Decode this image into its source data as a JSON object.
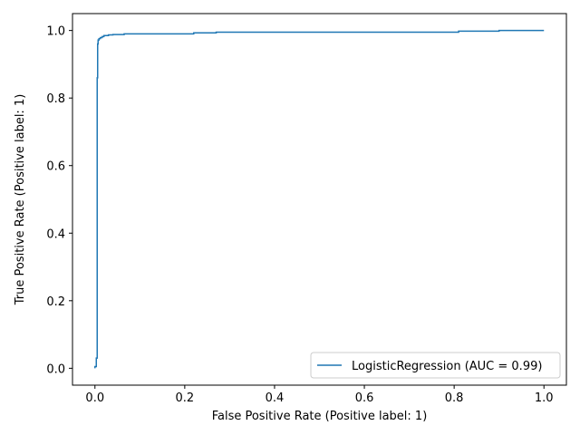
{
  "chart_data": {
    "type": "line",
    "title": "",
    "xlabel": "False Positive Rate (Positive label: 1)",
    "ylabel": "True Positive Rate (Positive label: 1)",
    "xlim": [
      -0.05,
      1.05
    ],
    "ylim": [
      -0.05,
      1.05
    ],
    "xticks": [
      0.0,
      0.2,
      0.4,
      0.6,
      0.8,
      1.0
    ],
    "yticks": [
      0.0,
      0.2,
      0.4,
      0.6,
      0.8,
      1.0
    ],
    "xtick_labels": [
      "0.0",
      "0.2",
      "0.4",
      "0.6",
      "0.8",
      "1.0"
    ],
    "ytick_labels": [
      "0.0",
      "0.2",
      "0.4",
      "0.6",
      "0.8",
      "1.0"
    ],
    "grid": false,
    "legend_position": "lower-right",
    "series": [
      {
        "name": "LogisticRegression (AUC = 0.99)",
        "color": "#1f77b4",
        "x": [
          0.0,
          0.0,
          0.003,
          0.003,
          0.005,
          0.005,
          0.006,
          0.006,
          0.007,
          0.007,
          0.009,
          0.009,
          0.012,
          0.012,
          0.016,
          0.016,
          0.02,
          0.02,
          0.03,
          0.03,
          0.04,
          0.04,
          0.065,
          0.065,
          0.22,
          0.22,
          0.27,
          0.27,
          0.81,
          0.81,
          0.9,
          0.9,
          1.0
        ],
        "y": [
          0.0,
          0.005,
          0.005,
          0.03,
          0.03,
          0.86,
          0.86,
          0.96,
          0.96,
          0.972,
          0.972,
          0.976,
          0.976,
          0.979,
          0.979,
          0.982,
          0.982,
          0.985,
          0.985,
          0.987,
          0.987,
          0.988,
          0.988,
          0.99,
          0.99,
          0.993,
          0.993,
          0.995,
          0.995,
          0.998,
          0.998,
          1.0,
          1.0
        ]
      }
    ]
  }
}
